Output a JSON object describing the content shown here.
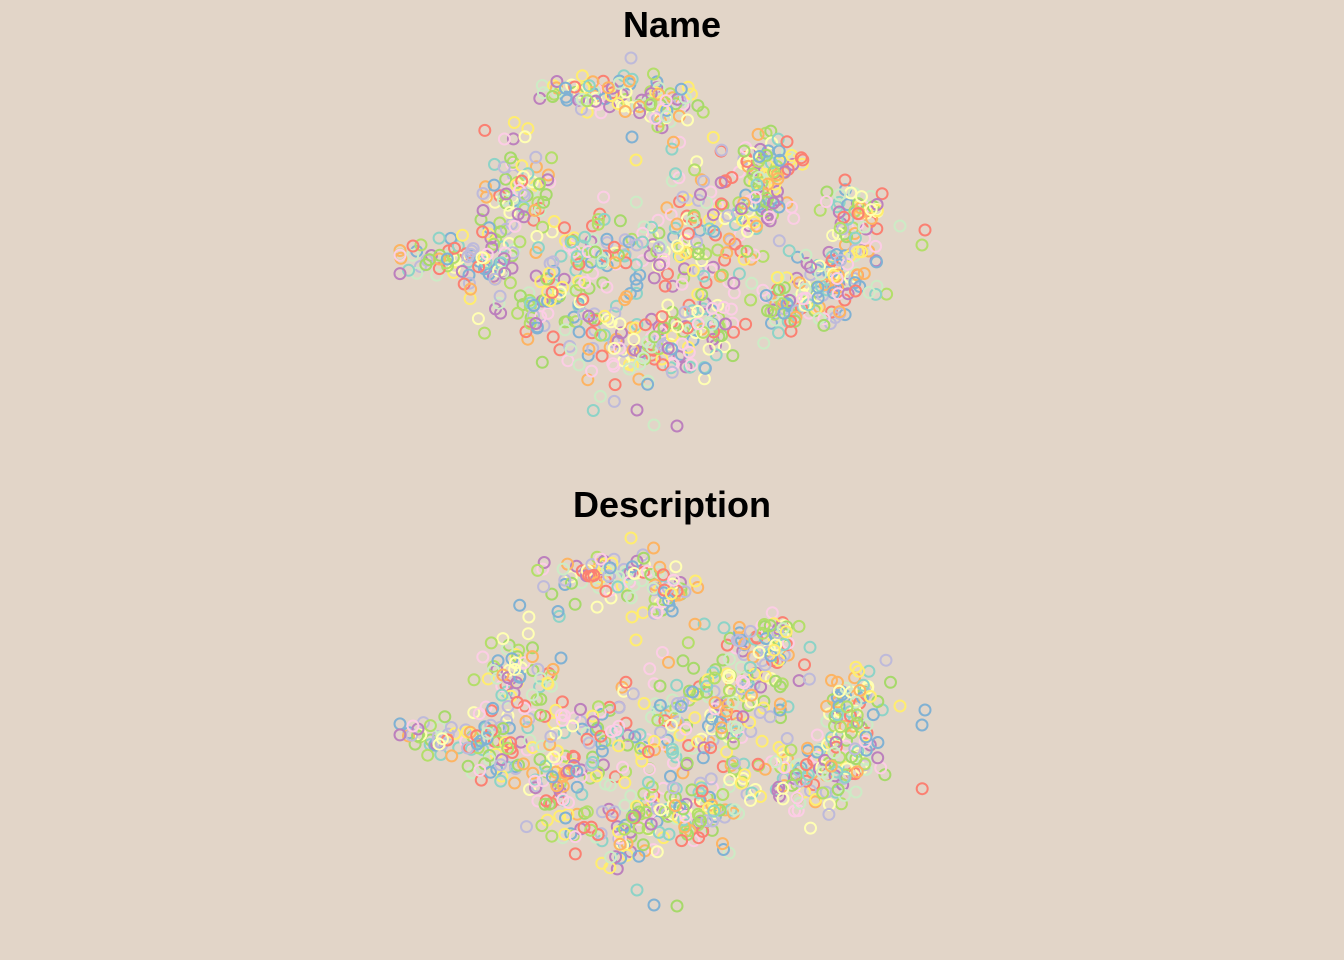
{
  "chart_data": [
    {
      "type": "scatter",
      "title": "Name",
      "xlabel": "",
      "ylabel": "",
      "grid": false,
      "legend": "none",
      "marker": "open-circle"
    },
    {
      "type": "scatter",
      "title": "Description",
      "xlabel": "",
      "ylabel": "",
      "grid": false,
      "legend": "none",
      "marker": "open-circle"
    }
  ],
  "colors": {
    "background": "#e2d5c8",
    "palette": [
      "#8dd3c7",
      "#ffffb3",
      "#bebada",
      "#fb8072",
      "#80b1d3",
      "#fdb462",
      "#b3de69",
      "#fccde5",
      "#bc80bd",
      "#ccebc5",
      "#ffed6f",
      "#a6d96a"
    ]
  }
}
